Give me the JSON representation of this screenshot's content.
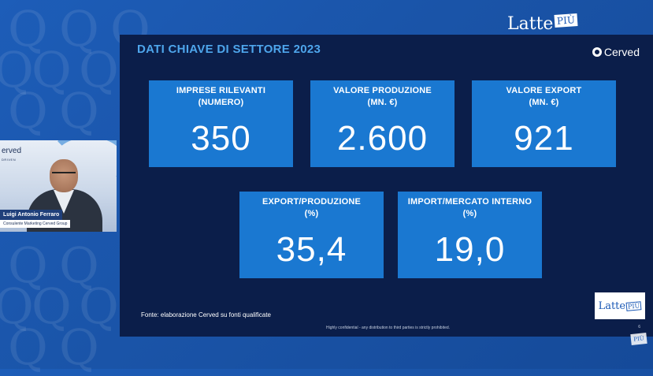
{
  "brand": {
    "name": "Latte",
    "suffix": "PIÙ"
  },
  "slide": {
    "title": "DATI CHIAVE DI SETTORE 2023",
    "logo_text": "Cerved",
    "cards": [
      {
        "label_line1": "IMPRESE RILEVANTI",
        "label_line2": "(NUMERO)",
        "value": "350"
      },
      {
        "label_line1": "VALORE PRODUZIONE",
        "label_line2": "(MN. €)",
        "value": "2.600"
      },
      {
        "label_line1": "VALORE EXPORT",
        "label_line2": "(MN. €)",
        "value": "921"
      },
      {
        "label_line1": "EXPORT/PRODUZIONE",
        "label_line2": "(%)",
        "value": "35,4"
      },
      {
        "label_line1": "IMPORT/MERCATO INTERNO",
        "label_line2": "(%)",
        "value": "19,0"
      }
    ],
    "source": "Fonte: elaborazione Cerved su fonti qualificate",
    "confidential": "Highly confidential - any distribution to third parties is strictly prohibited.",
    "page_number": "6"
  },
  "video": {
    "logo_text": "erved",
    "logo_sub": "DRIVEN",
    "speaker_name": "Luigi Antonio Ferraro",
    "speaker_role": "Consulente Marketing Cerved Group"
  },
  "colors": {
    "background": "#1a54a8",
    "slide_bg": "#0b1e4a",
    "card": "#1a78d1",
    "title": "#4ea6ec"
  },
  "icons": [
    "cerved-logo-icon",
    "latte-piu-logo-icon"
  ]
}
